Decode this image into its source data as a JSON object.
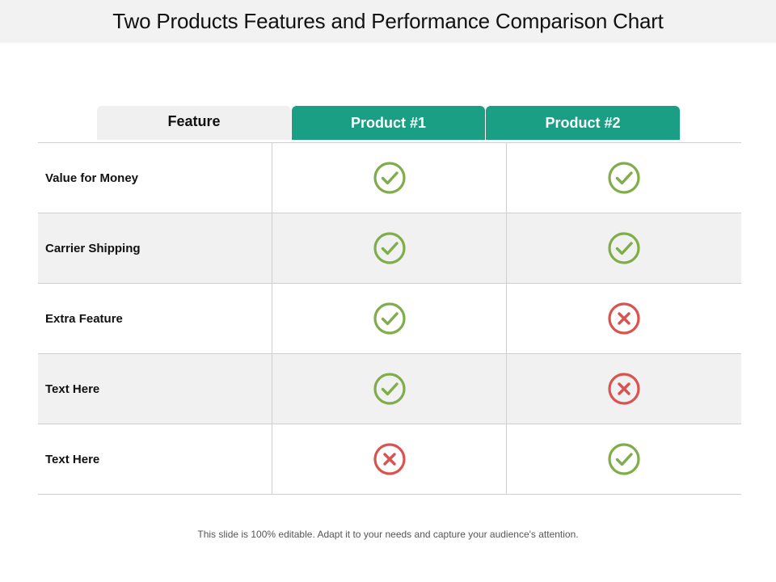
{
  "title": "Two Products Features and Performance Comparison Chart",
  "headers": {
    "feature": "Feature",
    "product1": "Product #1",
    "product2": "Product #2"
  },
  "rows": [
    {
      "label": "Value for Money",
      "product1": "check",
      "product2": "check"
    },
    {
      "label": "Carrier Shipping",
      "product1": "check",
      "product2": "check"
    },
    {
      "label": "Extra Feature",
      "product1": "check",
      "product2": "cross"
    },
    {
      "label": "Text Here",
      "product1": "check",
      "product2": "cross"
    },
    {
      "label": "Text Here",
      "product1": "cross",
      "product2": "check"
    }
  ],
  "footer": "This slide is 100% editable. Adapt it to your needs and capture your audience's attention.",
  "colors": {
    "accent": "#1a9e84",
    "check": "#7fad4a",
    "cross": "#d9534f",
    "shade": "#f1f1f1"
  }
}
